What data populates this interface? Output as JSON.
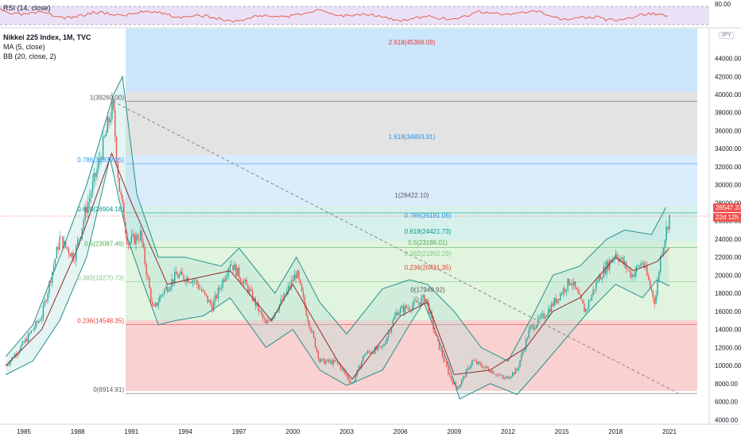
{
  "header": {
    "rsi_label": "RSI (14, close)",
    "title": "Nikkei 225 Index, 1M, TVC",
    "ma_label": "MA (5, close)",
    "bb_label": "BB (20, close, 2)",
    "unit": "JPY",
    "rsi_tick": "80.00",
    "price_tag": "26547.37",
    "countdown_tag": "22d 12h"
  },
  "chart_data": {
    "type": "line",
    "title": "Nikkei 225 Index, 1M, TVC",
    "x_ticks": [
      "1985",
      "1988",
      "1991",
      "1994",
      "1997",
      "2000",
      "2003",
      "2006",
      "2009",
      "2012",
      "2015",
      "2018",
      "2021"
    ],
    "x_tick_years": [
      1985,
      1988,
      1991,
      1994,
      1997,
      2000,
      2003,
      2006,
      2009,
      2012,
      2015,
      2018,
      2021
    ],
    "xlim": [
      1983.5,
      2022.5
    ],
    "y_ticks": [
      "4000.00",
      "6000.00",
      "8000.00",
      "10000.00",
      "12000.00",
      "14000.00",
      "16000.00",
      "18000.00",
      "20000.00",
      "22000.00",
      "24000.00",
      "26000.00",
      "28000.00",
      "30000.00",
      "32000.00",
      "34000.00",
      "36000.00",
      "38000.00",
      "40000.00",
      "42000.00",
      "44000.00"
    ],
    "ylim": [
      3500,
      47300
    ],
    "series": [
      {
        "x": [
          1984.0,
          1985.0,
          1986.0,
          1987.0,
          1987.8,
          1988.5,
          1989.0,
          1989.5,
          1989.95,
          1990.3,
          1990.8,
          1991.5,
          1992.2,
          1992.7,
          1993.5,
          1994.5,
          1995.5,
          1996.5,
          1997.5,
          1998.5,
          1999.5,
          2000.2,
          2000.8,
          2001.5,
          2002.5,
          2003.3,
          2004.0,
          2005.0,
          2005.8,
          2006.5,
          2007.4,
          2008.0,
          2008.8,
          2009.2,
          2010.0,
          2011.0,
          2011.8,
          2012.5,
          2013.2,
          2014.0,
          2015.5,
          2016.3,
          2017.0,
          2018.0,
          2018.9,
          2019.5,
          2020.2,
          2020.5,
          2021.0
        ],
        "values": [
          10000,
          12500,
          15500,
          24000,
          22000,
          27500,
          31000,
          35000,
          38900,
          30000,
          23500,
          24500,
          16000,
          18000,
          20000,
          19500,
          16500,
          21500,
          18500,
          14500,
          17500,
          20300,
          15500,
          10500,
          10300,
          7900,
          11300,
          12000,
          16000,
          16500,
          17500,
          13000,
          8500,
          7500,
          10500,
          9500,
          8500,
          9500,
          14000,
          15500,
          19500,
          16000,
          19500,
          22500,
          20000,
          21500,
          17000,
          22000,
          26547
        ]
      }
    ],
    "ma_series": {
      "x": [
        1984.0,
        1986.0,
        1988.0,
        1989.9,
        1991.0,
        1993.0,
        1996.5,
        1998.8,
        2000.0,
        2002.5,
        2003.3,
        2006.0,
        2007.5,
        2009.0,
        2011.0,
        2013.0,
        2014.5,
        2016.0,
        2018.0,
        2019.0,
        2020.3,
        2021.0
      ],
      "values": [
        10000,
        14000,
        23000,
        33500,
        28000,
        19000,
        20500,
        15000,
        19000,
        10500,
        8500,
        15500,
        17000,
        9000,
        9500,
        12000,
        16000,
        17500,
        22000,
        20500,
        21500,
        23000
      ]
    },
    "bb_upper": {
      "x": [
        1984.0,
        1985.5,
        1987.0,
        1988.5,
        1990.0,
        1990.5,
        1991.3,
        1992.5,
        1994.0,
        1996.0,
        1997.0,
        1999.0,
        2000.2,
        2001.5,
        2003.0,
        2005.0,
        2006.5,
        2007.5,
        2009.0,
        2010.5,
        2012.0,
        2013.5,
        2014.5,
        2016.0,
        2017.5,
        2018.5,
        2020.0,
        2020.8
      ],
      "values": [
        11000,
        14500,
        22000,
        30000,
        40000,
        42000,
        29000,
        22000,
        22000,
        21000,
        23000,
        18000,
        22000,
        17000,
        13500,
        18500,
        19500,
        19000,
        16000,
        12000,
        10500,
        16000,
        20000,
        21000,
        24000,
        25000,
        24500,
        27500
      ]
    },
    "bb_lower": {
      "x": [
        1984.0,
        1985.5,
        1987.0,
        1988.5,
        1989.8,
        1990.8,
        1991.5,
        1992.5,
        1993.5,
        1995.0,
        1996.5,
        1998.5,
        2000.0,
        2001.5,
        2003.0,
        2005.0,
        2006.5,
        2007.3,
        2008.7,
        2009.3,
        2011.0,
        2012.5,
        2013.5,
        2015.0,
        2016.5,
        2018.0,
        2019.5,
        2020.3,
        2021.0
      ],
      "values": [
        9000,
        10500,
        15000,
        22000,
        33000,
        24000,
        20000,
        14500,
        15000,
        15500,
        17500,
        12000,
        14000,
        9500,
        7800,
        9500,
        14500,
        17000,
        10000,
        6300,
        8000,
        6800,
        9000,
        12500,
        16000,
        19000,
        17500,
        19500,
        18800
      ]
    },
    "fib_levels": [
      {
        "label": "2.618(45366.09)",
        "price": 45366.09,
        "color": "#e53935"
      },
      {
        "label": "1(39260.00)",
        "price": 39260.0,
        "color": "#595959"
      },
      {
        "label": "1.618(34893.91)",
        "price": 34893.91,
        "color": "#2196f3"
      },
      {
        "label": "0.786(32339.15)",
        "price": 32339.15,
        "color": "#2196f3"
      },
      {
        "label": "1(28422.10)",
        "price": 28422.1,
        "color": "#595959"
      },
      {
        "label": "0.618(26904.18)",
        "price": 26904.18,
        "color": "#009688"
      },
      {
        "label": "0.786(26181.06)",
        "price": 26181.06,
        "color": "#2196f3"
      },
      {
        "label": "0.618(24421.73)",
        "price": 24421.73,
        "color": "#009688"
      },
      {
        "label": "0.5(23186.01)",
        "price": 23186.01,
        "color": "#4caf50"
      },
      {
        "label": "0.5(23087.46)",
        "price": 23087.46,
        "color": "#4caf50"
      },
      {
        "label": "0.382(21950.29)",
        "price": 21950.29,
        "color": "#81c784"
      },
      {
        "label": "0.236(20421.35)",
        "price": 20421.35,
        "color": "#e53935"
      },
      {
        "label": "0.382(19270.73)",
        "price": 19270.73,
        "color": "#81c784"
      },
      {
        "label": "0(17949.92)",
        "price": 17949.92,
        "color": "#595959"
      },
      {
        "label": "0.236(14548.35)",
        "price": 14548.35,
        "color": "#e53935"
      },
      {
        "label": "0(6914.91)",
        "price": 6914.91,
        "color": "#595959"
      }
    ],
    "trendline": {
      "x": [
        1989.95,
        2021.5
      ],
      "values": [
        39260,
        6914.91
      ]
    },
    "last_price": 26547.37,
    "grid": false,
    "legend": "top-left"
  },
  "colors": {
    "up": "#26a69a",
    "down": "#ef5350",
    "ma": "#8d2c2c",
    "bb": "#26908a",
    "rsi_line": "#e5533d",
    "rsi_band": "#e8ddf5",
    "price_tag": "#ef5350",
    "countdown_tag": "#ef5350"
  }
}
